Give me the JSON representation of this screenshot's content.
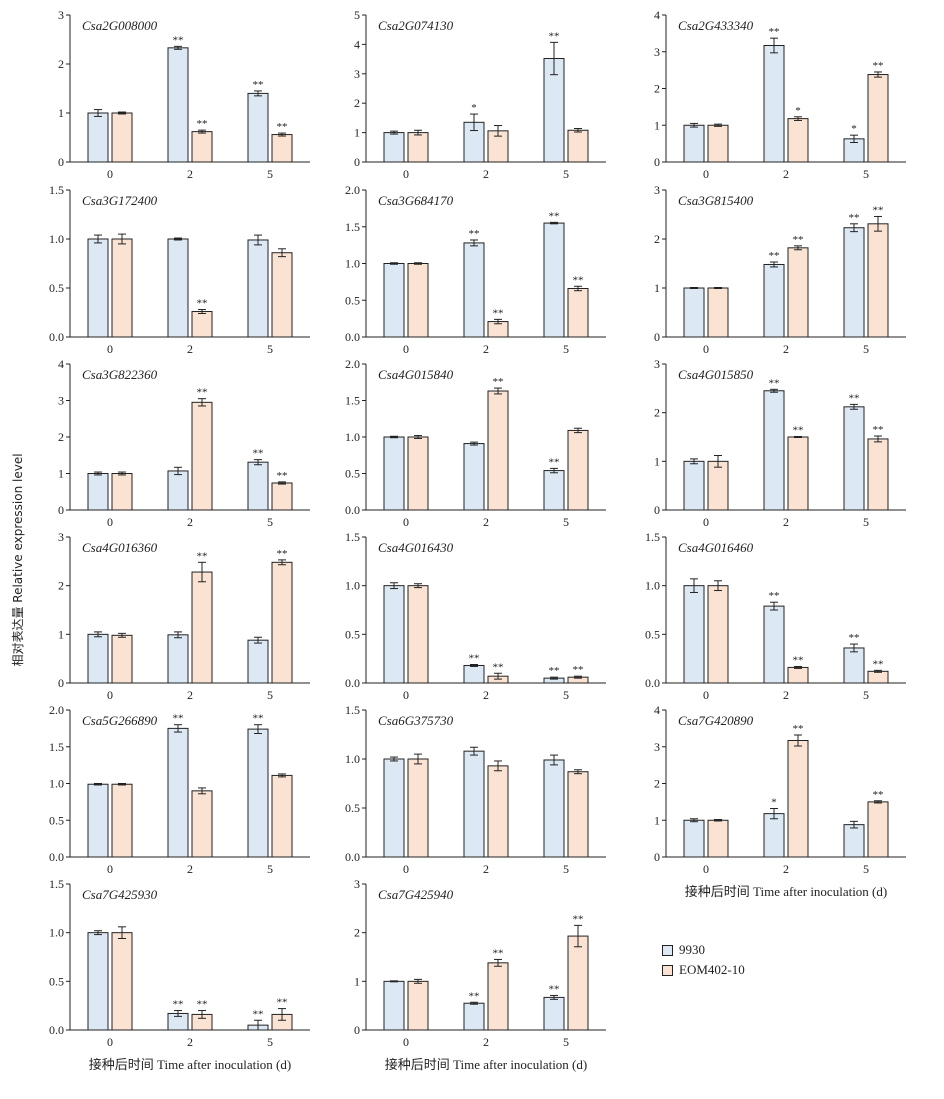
{
  "y_label": "相对表达量 Relative expression level",
  "x_label": "接种后时间 Time after inoculation (d)",
  "colors": {
    "s9930": "#dce9f5",
    "eom": "#fae3d3",
    "axis": "#222222"
  },
  "legend": [
    {
      "name": "9930",
      "color": "#dce9f5"
    },
    {
      "name": "EOM402-10",
      "color": "#fae3d3"
    }
  ],
  "chart_data": [
    {
      "type": "bar",
      "title": "Csa2G008000",
      "categories": [
        "0",
        "2",
        "5"
      ],
      "ylim": [
        0,
        3
      ],
      "yticks": [
        0,
        1,
        2,
        3
      ],
      "series": [
        {
          "name": "9930",
          "values": [
            1.0,
            2.33,
            1.4
          ],
          "errors": [
            0.07,
            0.03,
            0.05
          ],
          "sig": [
            "",
            "**",
            "**"
          ]
        },
        {
          "name": "EOM402-10",
          "values": [
            1.0,
            0.62,
            0.56
          ],
          "errors": [
            0.02,
            0.03,
            0.03
          ],
          "sig": [
            "",
            "**",
            "**"
          ]
        }
      ]
    },
    {
      "type": "bar",
      "title": "Csa2G074130",
      "categories": [
        "0",
        "2",
        "5"
      ],
      "ylim": [
        0,
        5
      ],
      "yticks": [
        0,
        1,
        2,
        3,
        4,
        5
      ],
      "series": [
        {
          "name": "9930",
          "values": [
            1.0,
            1.35,
            3.52
          ],
          "errors": [
            0.05,
            0.28,
            0.55
          ],
          "sig": [
            "",
            "*",
            "**"
          ]
        },
        {
          "name": "EOM402-10",
          "values": [
            1.0,
            1.06,
            1.08
          ],
          "errors": [
            0.08,
            0.18,
            0.06
          ],
          "sig": [
            "",
            "",
            ""
          ]
        }
      ]
    },
    {
      "type": "bar",
      "title": "Csa2G433340",
      "categories": [
        "0",
        "2",
        "5"
      ],
      "ylim": [
        0,
        4
      ],
      "yticks": [
        0,
        1,
        2,
        3,
        4
      ],
      "series": [
        {
          "name": "9930",
          "values": [
            1.0,
            3.17,
            0.63
          ],
          "errors": [
            0.05,
            0.2,
            0.1
          ],
          "sig": [
            "",
            "**",
            "*"
          ]
        },
        {
          "name": "EOM402-10",
          "values": [
            1.0,
            1.18,
            2.38
          ],
          "errors": [
            0.03,
            0.05,
            0.07
          ],
          "sig": [
            "",
            "*",
            "**"
          ]
        }
      ]
    },
    {
      "type": "bar",
      "title": "Csa3G172400",
      "categories": [
        "0",
        "2",
        "5"
      ],
      "ylim": [
        0,
        1.5
      ],
      "yticks": [
        0,
        0.5,
        1.0,
        1.5
      ],
      "series": [
        {
          "name": "9930",
          "values": [
            1.0,
            1.0,
            0.99
          ],
          "errors": [
            0.04,
            0.01,
            0.05
          ],
          "sig": [
            "",
            "",
            ""
          ]
        },
        {
          "name": "EOM402-10",
          "values": [
            1.0,
            0.26,
            0.86
          ],
          "errors": [
            0.05,
            0.02,
            0.04
          ],
          "sig": [
            "",
            "**",
            ""
          ]
        }
      ]
    },
    {
      "type": "bar",
      "title": "Csa3G684170",
      "categories": [
        "0",
        "2",
        "5"
      ],
      "ylim": [
        0,
        2.0
      ],
      "yticks": [
        0,
        0.5,
        1.0,
        1.5,
        2.0
      ],
      "series": [
        {
          "name": "9930",
          "values": [
            1.0,
            1.28,
            1.55
          ],
          "errors": [
            0.01,
            0.04,
            0.01
          ],
          "sig": [
            "",
            "**",
            "**"
          ]
        },
        {
          "name": "EOM402-10",
          "values": [
            1.0,
            0.21,
            0.66
          ],
          "errors": [
            0.01,
            0.03,
            0.03
          ],
          "sig": [
            "",
            "**",
            "**"
          ]
        }
      ]
    },
    {
      "type": "bar",
      "title": "Csa3G815400",
      "categories": [
        "0",
        "2",
        "5"
      ],
      "ylim": [
        0,
        3
      ],
      "yticks": [
        0,
        1,
        2,
        3
      ],
      "series": [
        {
          "name": "9930",
          "values": [
            1.0,
            1.48,
            2.23
          ],
          "errors": [
            0.01,
            0.05,
            0.08
          ],
          "sig": [
            "",
            "**",
            "**"
          ]
        },
        {
          "name": "EOM402-10",
          "values": [
            1.0,
            1.82,
            2.31
          ],
          "errors": [
            0.01,
            0.04,
            0.15
          ],
          "sig": [
            "",
            "**",
            "**"
          ]
        }
      ]
    },
    {
      "type": "bar",
      "title": "Csa3G822360",
      "categories": [
        "0",
        "2",
        "5"
      ],
      "ylim": [
        0,
        4
      ],
      "yticks": [
        0,
        1,
        2,
        3,
        4
      ],
      "series": [
        {
          "name": "9930",
          "values": [
            1.0,
            1.07,
            1.31
          ],
          "errors": [
            0.04,
            0.1,
            0.07
          ],
          "sig": [
            "",
            "",
            "**"
          ]
        },
        {
          "name": "EOM402-10",
          "values": [
            1.0,
            2.95,
            0.74
          ],
          "errors": [
            0.04,
            0.1,
            0.03
          ],
          "sig": [
            "",
            "**",
            "**"
          ]
        }
      ]
    },
    {
      "type": "bar",
      "title": "Csa4G015840",
      "categories": [
        "0",
        "2",
        "5"
      ],
      "ylim": [
        0,
        2.0
      ],
      "yticks": [
        0,
        0.5,
        1.0,
        1.5,
        2.0
      ],
      "series": [
        {
          "name": "9930",
          "values": [
            1.0,
            0.91,
            0.54
          ],
          "errors": [
            0.01,
            0.02,
            0.03
          ],
          "sig": [
            "",
            "",
            "**"
          ]
        },
        {
          "name": "EOM402-10",
          "values": [
            1.0,
            1.63,
            1.09
          ],
          "errors": [
            0.02,
            0.04,
            0.03
          ],
          "sig": [
            "",
            "**",
            ""
          ]
        }
      ]
    },
    {
      "type": "bar",
      "title": "Csa4G015850",
      "categories": [
        "0",
        "2",
        "5"
      ],
      "ylim": [
        0,
        3
      ],
      "yticks": [
        0,
        1,
        2,
        3
      ],
      "series": [
        {
          "name": "9930",
          "values": [
            1.0,
            2.45,
            2.12
          ],
          "errors": [
            0.05,
            0.03,
            0.05
          ],
          "sig": [
            "",
            "**",
            "**"
          ]
        },
        {
          "name": "EOM402-10",
          "values": [
            1.0,
            1.5,
            1.46
          ],
          "errors": [
            0.12,
            0.01,
            0.06
          ],
          "sig": [
            "",
            "**",
            "**"
          ]
        }
      ]
    },
    {
      "type": "bar",
      "title": "Csa4G016360",
      "categories": [
        "0",
        "2",
        "5"
      ],
      "ylim": [
        0,
        3
      ],
      "yticks": [
        0,
        1,
        2,
        3
      ],
      "series": [
        {
          "name": "9930",
          "values": [
            1.0,
            0.99,
            0.88
          ],
          "errors": [
            0.05,
            0.06,
            0.06
          ],
          "sig": [
            "",
            "",
            ""
          ]
        },
        {
          "name": "EOM402-10",
          "values": [
            0.98,
            2.28,
            2.48
          ],
          "errors": [
            0.04,
            0.2,
            0.05
          ],
          "sig": [
            "",
            "**",
            "**"
          ]
        }
      ]
    },
    {
      "type": "bar",
      "title": "Csa4G016430",
      "categories": [
        "0",
        "2",
        "5"
      ],
      "ylim": [
        0,
        1.5
      ],
      "yticks": [
        0,
        0.5,
        1.0,
        1.5
      ],
      "series": [
        {
          "name": "9930",
          "values": [
            1.0,
            0.18,
            0.05
          ],
          "errors": [
            0.03,
            0.01,
            0.01
          ],
          "sig": [
            "",
            "**",
            "**"
          ]
        },
        {
          "name": "EOM402-10",
          "values": [
            1.0,
            0.07,
            0.06
          ],
          "errors": [
            0.02,
            0.03,
            0.01
          ],
          "sig": [
            "",
            "**",
            "**"
          ]
        }
      ]
    },
    {
      "type": "bar",
      "title": "Csa4G016460",
      "categories": [
        "0",
        "2",
        "5"
      ],
      "ylim": [
        0,
        1.5
      ],
      "yticks": [
        0,
        0.5,
        1.0,
        1.5
      ],
      "series": [
        {
          "name": "9930",
          "values": [
            1.0,
            0.79,
            0.36
          ],
          "errors": [
            0.07,
            0.04,
            0.04
          ],
          "sig": [
            "",
            "**",
            "**"
          ]
        },
        {
          "name": "EOM402-10",
          "values": [
            1.0,
            0.16,
            0.12
          ],
          "errors": [
            0.05,
            0.01,
            0.01
          ],
          "sig": [
            "",
            "**",
            "**"
          ]
        }
      ]
    },
    {
      "type": "bar",
      "title": "Csa5G266890",
      "categories": [
        "0",
        "2",
        "5"
      ],
      "ylim": [
        0,
        2.0
      ],
      "yticks": [
        0,
        0.5,
        1.0,
        1.5,
        2.0
      ],
      "series": [
        {
          "name": "9930",
          "values": [
            0.99,
            1.75,
            1.74
          ],
          "errors": [
            0.01,
            0.05,
            0.06
          ],
          "sig": [
            "",
            "**",
            "**"
          ]
        },
        {
          "name": "EOM402-10",
          "values": [
            0.99,
            0.9,
            1.11
          ],
          "errors": [
            0.01,
            0.04,
            0.02
          ],
          "sig": [
            "",
            "",
            ""
          ]
        }
      ]
    },
    {
      "type": "bar",
      "title": "Csa6G375730",
      "categories": [
        "0",
        "2",
        "5"
      ],
      "ylim": [
        0,
        1.5
      ],
      "yticks": [
        0,
        0.5,
        1.0,
        1.5
      ],
      "series": [
        {
          "name": "9930",
          "values": [
            1.0,
            1.08,
            0.99
          ],
          "errors": [
            0.02,
            0.04,
            0.05
          ],
          "sig": [
            "",
            "",
            ""
          ]
        },
        {
          "name": "EOM402-10",
          "values": [
            1.0,
            0.93,
            0.87
          ],
          "errors": [
            0.05,
            0.05,
            0.02
          ],
          "sig": [
            "",
            "",
            ""
          ]
        }
      ]
    },
    {
      "type": "bar",
      "title": "Csa7G420890",
      "categories": [
        "0",
        "2",
        "5"
      ],
      "ylim": [
        0,
        4
      ],
      "yticks": [
        0,
        1,
        2,
        3,
        4
      ],
      "series": [
        {
          "name": "9930",
          "values": [
            1.0,
            1.18,
            0.88
          ],
          "errors": [
            0.04,
            0.14,
            0.09
          ],
          "sig": [
            "",
            "*",
            ""
          ]
        },
        {
          "name": "EOM402-10",
          "values": [
            1.0,
            3.17,
            1.5
          ],
          "errors": [
            0.02,
            0.15,
            0.03
          ],
          "sig": [
            "",
            "**",
            "**"
          ]
        }
      ]
    },
    {
      "type": "bar",
      "title": "Csa7G425930",
      "categories": [
        "0",
        "2",
        "5"
      ],
      "ylim": [
        0,
        1.5
      ],
      "yticks": [
        0,
        0.5,
        1.0,
        1.5
      ],
      "series": [
        {
          "name": "9930",
          "values": [
            1.0,
            0.17,
            0.05
          ],
          "errors": [
            0.02,
            0.03,
            0.05
          ],
          "sig": [
            "",
            "**",
            "**"
          ]
        },
        {
          "name": "EOM402-10",
          "values": [
            1.0,
            0.16,
            0.16
          ],
          "errors": [
            0.06,
            0.04,
            0.06
          ],
          "sig": [
            "",
            "**",
            "**"
          ]
        }
      ]
    },
    {
      "type": "bar",
      "title": "Csa7G425940",
      "categories": [
        "0",
        "2",
        "5"
      ],
      "ylim": [
        0,
        3
      ],
      "yticks": [
        0,
        1,
        2,
        3
      ],
      "series": [
        {
          "name": "9930",
          "values": [
            1.0,
            0.55,
            0.67
          ],
          "errors": [
            0.01,
            0.02,
            0.04
          ],
          "sig": [
            "",
            "**",
            "**"
          ]
        },
        {
          "name": "EOM402-10",
          "values": [
            1.0,
            1.38,
            1.93
          ],
          "errors": [
            0.04,
            0.07,
            0.22
          ],
          "sig": [
            "",
            "**",
            "**"
          ]
        }
      ]
    }
  ]
}
